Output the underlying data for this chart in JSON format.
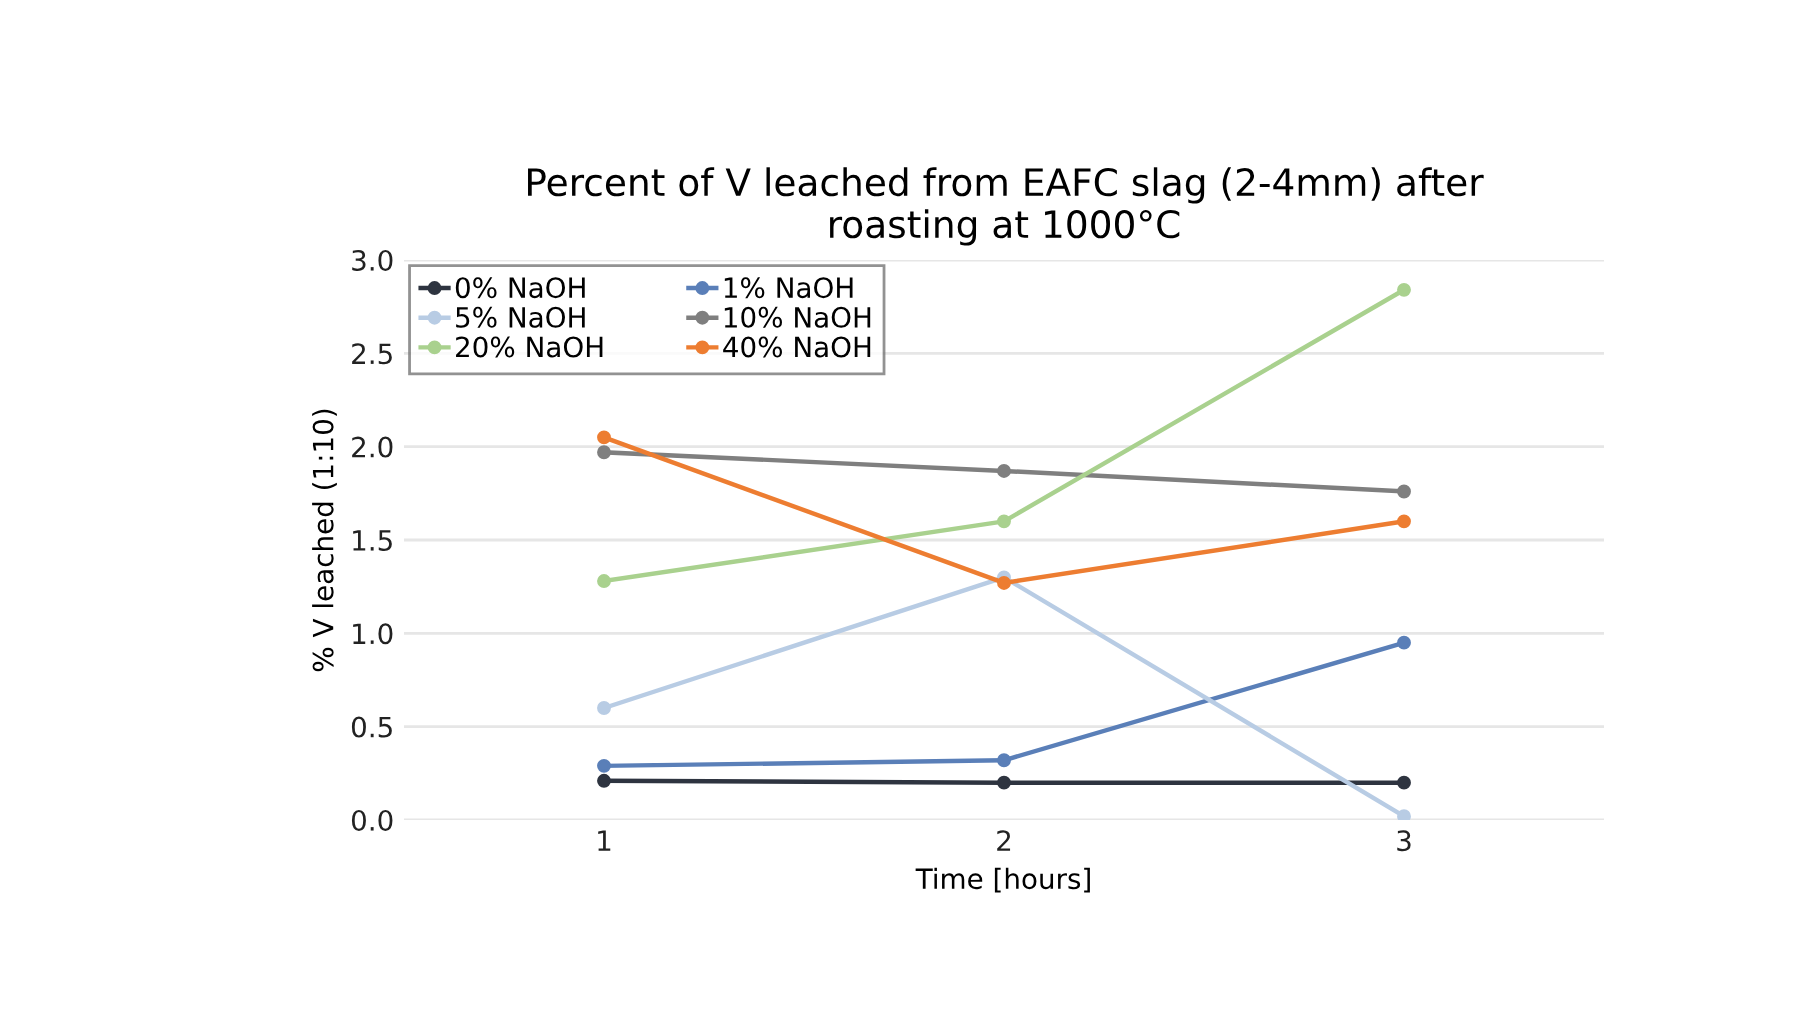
{
  "chart_data": {
    "type": "line",
    "title": "Percent of V leached from EAFC slag (2-4mm) after\nroasting at 1000°C",
    "xlabel": "Time [hours]",
    "ylabel": "% V leached (1:10)",
    "x": [
      1,
      2,
      3
    ],
    "xlim": [
      0.5,
      3.5
    ],
    "xticks": [
      1,
      2,
      3
    ],
    "series": [
      {
        "name": "0% NaOH",
        "color": "#2e3440",
        "values": [
          0.21,
          0.2,
          0.2
        ]
      },
      {
        "name": "1% NaOH",
        "color": "#5a7fb8",
        "values": [
          0.29,
          0.32,
          0.95
        ]
      },
      {
        "name": "5% NaOH",
        "color": "#b8cce4",
        "values": [
          0.6,
          1.3,
          0.02
        ]
      },
      {
        "name": "10% NaOH",
        "color": "#7f7f7f",
        "values": [
          1.97,
          1.87,
          1.76
        ]
      },
      {
        "name": "20% NaOH",
        "color": "#a9d18e",
        "values": [
          1.28,
          1.6,
          2.84
        ]
      },
      {
        "name": "40% NaOH",
        "color": "#ed7d31",
        "values": [
          2.05,
          1.27,
          1.6
        ]
      }
    ],
    "ylim": [
      0,
      3
    ],
    "yticks": [
      {
        "value": 0,
        "label": "0.0"
      },
      {
        "value": 0.5,
        "label": "0.5"
      },
      {
        "value": 1,
        "label": "1.0"
      },
      {
        "value": 1.5,
        "label": "1.5"
      },
      {
        "value": 2,
        "label": "2.0"
      },
      {
        "value": 2.5,
        "label": "2.5"
      },
      {
        "value": 3,
        "label": "3.0"
      }
    ],
    "grid": "y",
    "legend": "top left",
    "marker": "circle",
    "line_style": "solid"
  }
}
